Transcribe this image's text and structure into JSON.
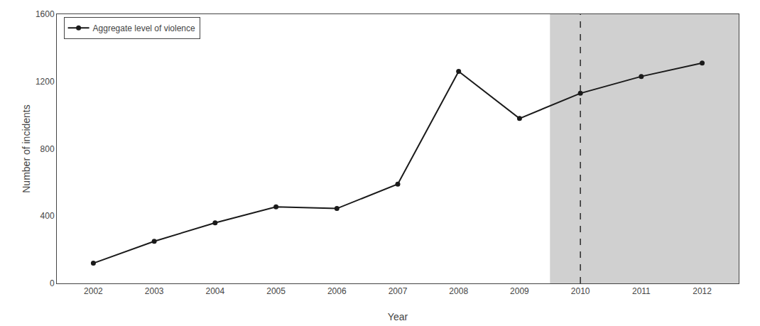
{
  "chart_data": {
    "type": "line",
    "x_label": "Year",
    "y_label": "Number of incidents",
    "x": [
      2002,
      2003,
      2004,
      2005,
      2006,
      2007,
      2008,
      2009,
      2010,
      2011,
      2012
    ],
    "series": [
      {
        "name": "Aggregate level of violence",
        "color": "#1a1a1a",
        "marker": "circle",
        "line_style": "solid",
        "values": [
          120,
          250,
          360,
          455,
          445,
          590,
          1260,
          980,
          1130,
          1230,
          1310
        ]
      }
    ],
    "xlim": [
      2001.4,
      2012.6
    ],
    "xticks": [
      2002,
      2003,
      2004,
      2005,
      2006,
      2007,
      2008,
      2009,
      2010,
      2011,
      2012
    ],
    "ylim": [
      0,
      1600
    ],
    "yticks": [
      0,
      400,
      800,
      1200,
      1600
    ],
    "shaded_region": {
      "x": [
        2009.5,
        2012.6
      ],
      "color": "#d0d0d0"
    },
    "reference_line": {
      "x": 2010,
      "color": "#2a2a2a",
      "line_style": "dashed"
    },
    "grid": false,
    "legend": "upper left"
  }
}
